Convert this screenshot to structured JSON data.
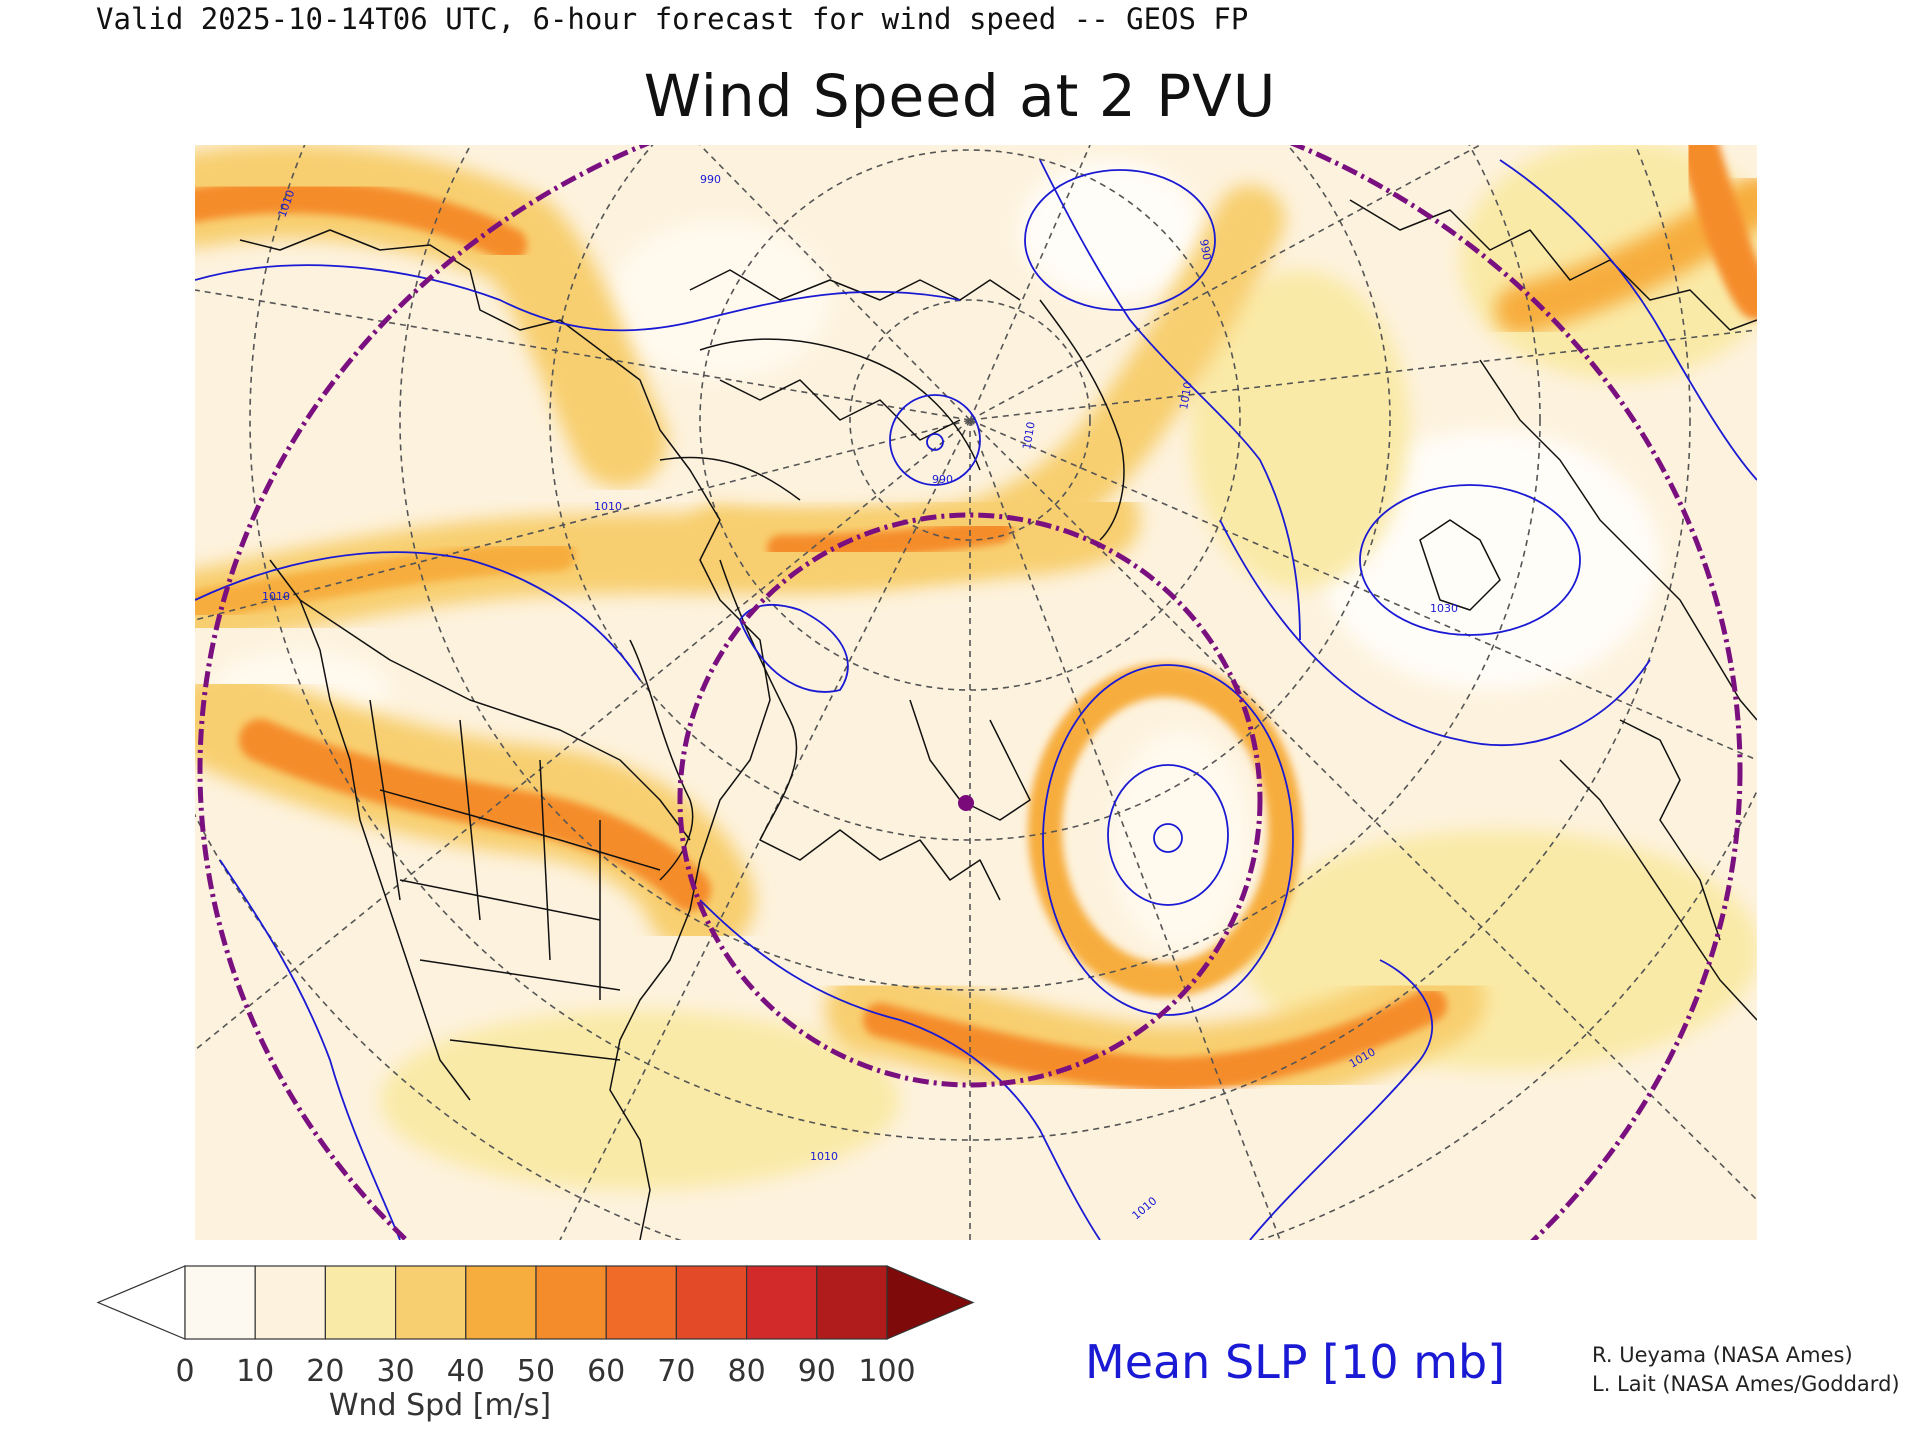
{
  "header": {
    "valid_text": "Valid 2025-10-14T06 UTC, 6-hour forecast for wind speed -- GEOS FP",
    "title": "Wind Speed at 2 PVU"
  },
  "map": {
    "contour_labels": [
      "1010",
      "1010",
      "1010",
      "1010",
      "990",
      "990",
      "990",
      "1010",
      "1030",
      "1010",
      "1010",
      "1010"
    ],
    "marker_color": "#7a0a7a",
    "circle_color": "#7a1080",
    "slp_color": "#1a1ad4"
  },
  "colorbar": {
    "title": "Wnd Spd [m/s]",
    "ticks": [
      "0",
      "10",
      "20",
      "30",
      "40",
      "50",
      "60",
      "70",
      "80",
      "90",
      "100"
    ],
    "colors": [
      "#ffffff",
      "#fef9f0",
      "#fdf2dd",
      "#faeaa8",
      "#f8cf70",
      "#f7ad3d",
      "#f58c2c",
      "#ef6b27",
      "#e24a28",
      "#d22a2a",
      "#b01c1c",
      "#7e0a0a"
    ]
  },
  "legend": {
    "slp_label": "Mean SLP [10 mb]"
  },
  "credits": [
    "R. Ueyama (NASA Ames)",
    "L. Lait (NASA Ames/Goddard)"
  ]
}
